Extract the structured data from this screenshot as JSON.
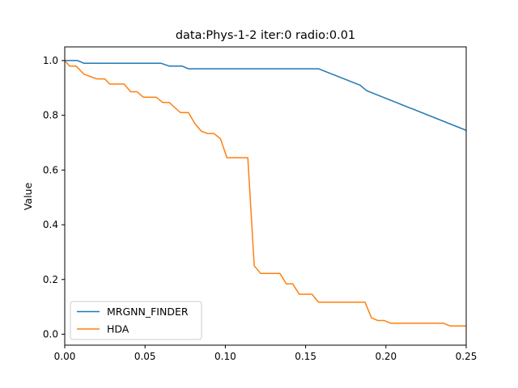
{
  "chart_data": {
    "type": "line",
    "title": "data:Phys-1-2 iter:0 radio:0.01",
    "xlabel": "",
    "ylabel": "Value",
    "xlim": [
      0,
      0.25
    ],
    "ylim": [
      -0.04,
      1.05
    ],
    "xticks": [
      0.0,
      0.05,
      0.1,
      0.15,
      0.2,
      0.25
    ],
    "xtick_labels": [
      "0.00",
      "0.05",
      "0.10",
      "0.15",
      "0.20",
      "0.25"
    ],
    "yticks": [
      0.0,
      0.2,
      0.4,
      0.6,
      0.8,
      1.0
    ],
    "ytick_labels": [
      "0.0",
      "0.2",
      "0.4",
      "0.6",
      "0.8",
      "1.0"
    ],
    "grid": false,
    "legend_position": "lower-left",
    "series": [
      {
        "name": "MRGNN_FINDER",
        "color": "#1f77b4",
        "points": [
          [
            0.0,
            1.0
          ],
          [
            0.008,
            1.0
          ],
          [
            0.012,
            0.99
          ],
          [
            0.06,
            0.99
          ],
          [
            0.065,
            0.98
          ],
          [
            0.073,
            0.98
          ],
          [
            0.077,
            0.97
          ],
          [
            0.158,
            0.97
          ],
          [
            0.184,
            0.91
          ],
          [
            0.188,
            0.89
          ],
          [
            0.25,
            0.745
          ]
        ]
      },
      {
        "name": "HDA",
        "color": "#ff7f0e",
        "points": [
          [
            0.0,
            1.0
          ],
          [
            0.003,
            0.98
          ],
          [
            0.007,
            0.98
          ],
          [
            0.012,
            0.95
          ],
          [
            0.02,
            0.933
          ],
          [
            0.025,
            0.933
          ],
          [
            0.028,
            0.914
          ],
          [
            0.037,
            0.914
          ],
          [
            0.041,
            0.886
          ],
          [
            0.045,
            0.886
          ],
          [
            0.049,
            0.866
          ],
          [
            0.057,
            0.866
          ],
          [
            0.061,
            0.847
          ],
          [
            0.065,
            0.847
          ],
          [
            0.072,
            0.81
          ],
          [
            0.077,
            0.81
          ],
          [
            0.081,
            0.77
          ],
          [
            0.085,
            0.742
          ],
          [
            0.089,
            0.733
          ],
          [
            0.093,
            0.733
          ],
          [
            0.097,
            0.714
          ],
          [
            0.101,
            0.645
          ],
          [
            0.114,
            0.645
          ],
          [
            0.118,
            0.25
          ],
          [
            0.122,
            0.222
          ],
          [
            0.134,
            0.222
          ],
          [
            0.138,
            0.184
          ],
          [
            0.142,
            0.184
          ],
          [
            0.146,
            0.146
          ],
          [
            0.154,
            0.146
          ],
          [
            0.158,
            0.117
          ],
          [
            0.187,
            0.117
          ],
          [
            0.191,
            0.06
          ],
          [
            0.195,
            0.05
          ],
          [
            0.199,
            0.05
          ],
          [
            0.203,
            0.04
          ],
          [
            0.236,
            0.04
          ],
          [
            0.24,
            0.03
          ],
          [
            0.25,
            0.03
          ]
        ]
      }
    ]
  }
}
